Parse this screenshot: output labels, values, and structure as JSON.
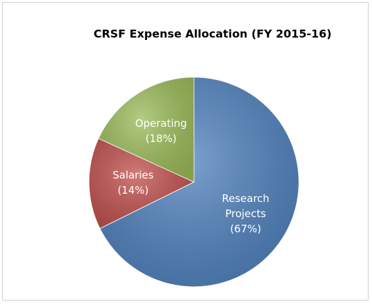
{
  "chart_data": {
    "type": "pie",
    "title": "CRSF Expense Allocation (FY 2015-16)",
    "categories": [
      "Research Projects",
      "Salaries",
      "Operating"
    ],
    "values": [
      67,
      14,
      18
    ],
    "value_labels": [
      "(67%)",
      "(14%)",
      "(18%)"
    ],
    "colors": [
      "#4f81bd",
      "#c0504d",
      "#9bbb59"
    ]
  }
}
